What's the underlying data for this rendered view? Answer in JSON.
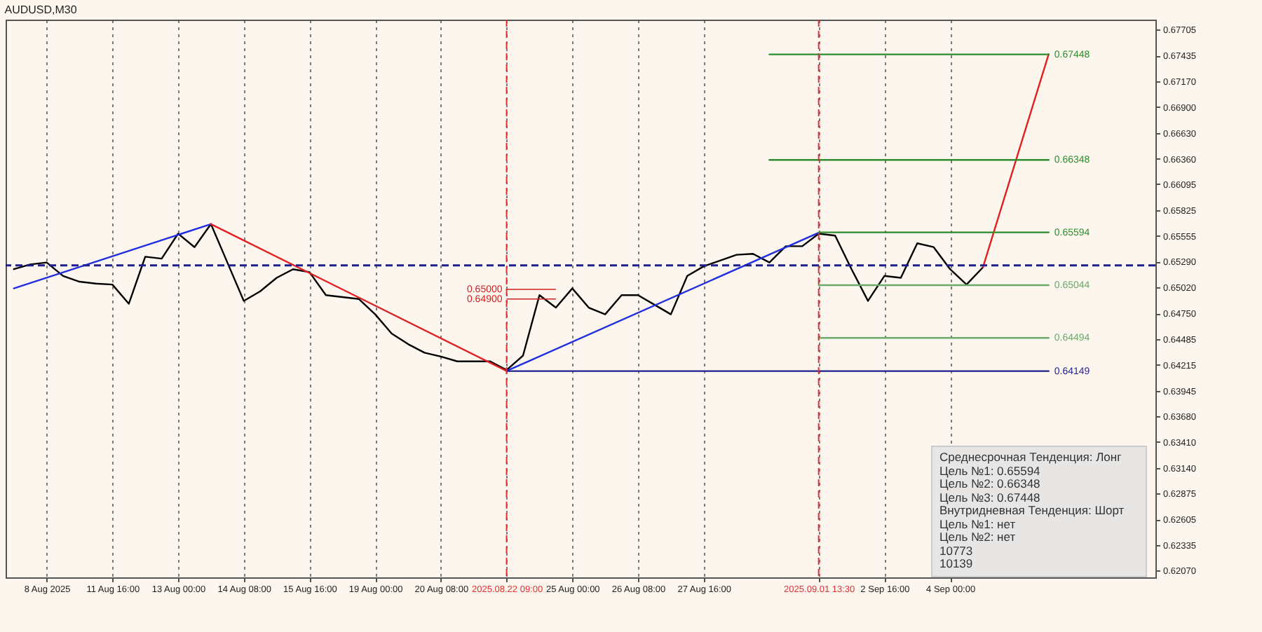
{
  "chart_data": {
    "type": "line",
    "title": "AUDUSD,M30",
    "categories": [
      null,
      null,
      "8 Aug 2025",
      null,
      null,
      null,
      "11 Aug 16:00",
      null,
      null,
      null,
      "13 Aug 00:00",
      null,
      null,
      null,
      "14 Aug 08:00",
      null,
      null,
      null,
      "15 Aug 16:00",
      null,
      null,
      null,
      "19 Aug 00:00",
      null,
      null,
      null,
      "20 Aug 08:00",
      null,
      null,
      null,
      "2025.08.22 09:00",
      null,
      null,
      null,
      "25 Aug 00:00",
      null,
      null,
      null,
      "26 Aug 08:00",
      null,
      null,
      null,
      "27 Aug 16:00",
      null,
      null,
      null,
      null,
      null,
      null,
      "2025.09.01 13:30",
      null,
      null,
      null,
      "2 Sep 16:00",
      null,
      null,
      null,
      "4 Sep 00:00",
      null,
      null,
      null,
      null,
      null,
      null,
      null,
      null,
      null,
      null,
      null,
      null
    ],
    "series": [
      {
        "color": "#000000",
        "values": [
          0.6521,
          0.6526,
          0.6528,
          0.6514,
          0.6508,
          0.6506,
          0.6505,
          0.6485,
          0.6534,
          0.6532,
          0.6558,
          0.6544,
          0.6568,
          0.6528,
          0.6488,
          0.6498,
          0.6512,
          0.6521,
          0.6518,
          0.6494,
          0.6492,
          0.649,
          0.6474,
          0.6454,
          0.6443,
          0.6434,
          0.643,
          0.6425,
          0.6425,
          0.6425,
          0.6416,
          0.6431,
          0.6494,
          0.6481,
          0.6501,
          0.6481,
          0.6474,
          0.6494,
          0.6494,
          0.6484,
          0.6474,
          0.6514,
          0.6524,
          0.653,
          0.6536,
          0.6537,
          0.6528,
          0.6545,
          0.6545,
          0.6558,
          0.6556,
          0.6521,
          0.6488,
          0.6514,
          0.6512,
          0.6548,
          0.6544,
          0.6521,
          0.6505,
          0.6523,
          null,
          null,
          null,
          null,
          null,
          null,
          null,
          null,
          null,
          null
        ]
      },
      {
        "color": "#1f2fe0",
        "values": [
          0.6501,
          null,
          null,
          null,
          null,
          null,
          null,
          null,
          null,
          null,
          null,
          null,
          0.6568,
          null,
          null,
          null,
          null,
          null,
          null,
          null,
          null,
          null,
          null,
          null,
          null,
          null,
          null,
          null,
          null,
          null,
          null,
          null,
          null,
          null,
          null,
          null,
          null,
          null,
          null,
          null,
          null,
          null,
          null,
          null,
          null,
          null,
          null,
          null,
          null,
          null,
          null,
          null,
          null,
          null,
          null,
          null,
          null,
          null,
          null,
          null,
          null,
          null,
          null,
          null,
          null,
          null,
          null,
          null,
          null,
          null
        ]
      },
      {
        "color": "#e02020",
        "values": [
          null,
          null,
          null,
          null,
          null,
          null,
          null,
          null,
          null,
          null,
          null,
          null,
          0.6568,
          null,
          null,
          null,
          null,
          null,
          null,
          null,
          null,
          null,
          null,
          null,
          null,
          null,
          null,
          null,
          null,
          null,
          0.6415,
          null,
          null,
          null,
          null,
          null,
          null,
          null,
          null,
          null,
          null,
          null,
          null,
          null,
          null,
          null,
          null,
          null,
          null,
          null,
          null,
          null,
          null,
          null,
          null,
          null,
          null,
          null,
          null,
          null,
          null,
          null,
          null,
          null,
          null,
          null,
          null,
          null,
          null,
          null
        ]
      },
      {
        "color": "#1f2fe0",
        "values": [
          null,
          null,
          null,
          null,
          null,
          null,
          null,
          null,
          null,
          null,
          null,
          null,
          null,
          null,
          null,
          null,
          null,
          null,
          null,
          null,
          null,
          null,
          null,
          null,
          null,
          null,
          null,
          null,
          null,
          null,
          0.6415,
          null,
          null,
          null,
          null,
          null,
          null,
          null,
          null,
          null,
          null,
          null,
          null,
          null,
          null,
          null,
          null,
          null,
          null,
          0.6559,
          null,
          null,
          null,
          null,
          null,
          null,
          null,
          null,
          null,
          null,
          null,
          null,
          null,
          null,
          null,
          null,
          null,
          null,
          null,
          null
        ]
      },
      {
        "color": "#e02020",
        "values": [
          null,
          null,
          null,
          null,
          null,
          null,
          null,
          null,
          null,
          null,
          null,
          null,
          null,
          null,
          null,
          null,
          null,
          null,
          null,
          null,
          null,
          null,
          null,
          null,
          null,
          null,
          null,
          null,
          null,
          null,
          null,
          null,
          null,
          null,
          null,
          null,
          null,
          null,
          null,
          null,
          null,
          null,
          null,
          null,
          null,
          null,
          null,
          null,
          null,
          null,
          null,
          null,
          null,
          null,
          null,
          null,
          null,
          null,
          null,
          0.6523,
          null,
          null,
          null,
          0.6745,
          null,
          null,
          null,
          null,
          null,
          null
        ]
      },
      {
        "name": "0.67448",
        "color": "#2e8b2e",
        "values": [
          null,
          null,
          null,
          null,
          null,
          null,
          null,
          null,
          null,
          null,
          null,
          null,
          null,
          null,
          null,
          null,
          null,
          null,
          null,
          null,
          null,
          null,
          null,
          null,
          null,
          null,
          null,
          null,
          null,
          null,
          null,
          null,
          null,
          null,
          null,
          null,
          null,
          null,
          null,
          null,
          null,
          null,
          null,
          null,
          null,
          null,
          0.67448,
          null,
          null,
          null,
          null,
          null,
          null,
          null,
          null,
          null,
          null,
          null,
          null,
          null,
          null,
          null,
          null,
          0.67448,
          null,
          null,
          null,
          null,
          null,
          null
        ]
      },
      {
        "name": "0.66348",
        "color": "#2e8b2e",
        "values": [
          null,
          null,
          null,
          null,
          null,
          null,
          null,
          null,
          null,
          null,
          null,
          null,
          null,
          null,
          null,
          null,
          null,
          null,
          null,
          null,
          null,
          null,
          null,
          null,
          null,
          null,
          null,
          null,
          null,
          null,
          null,
          null,
          null,
          null,
          null,
          null,
          null,
          null,
          null,
          null,
          null,
          null,
          null,
          null,
          null,
          null,
          0.66348,
          null,
          null,
          null,
          null,
          null,
          null,
          null,
          null,
          null,
          null,
          null,
          null,
          null,
          null,
          null,
          null,
          0.66348,
          null,
          null,
          null,
          null,
          null,
          null
        ]
      },
      {
        "name": "0.65594",
        "color": "#2e8b2e",
        "values": [
          null,
          null,
          null,
          null,
          null,
          null,
          null,
          null,
          null,
          null,
          null,
          null,
          null,
          null,
          null,
          null,
          null,
          null,
          null,
          null,
          null,
          null,
          null,
          null,
          null,
          null,
          null,
          null,
          null,
          null,
          null,
          null,
          null,
          null,
          null,
          null,
          null,
          null,
          null,
          null,
          null,
          null,
          null,
          null,
          null,
          null,
          null,
          null,
          null,
          0.65594,
          null,
          null,
          null,
          null,
          null,
          null,
          null,
          null,
          null,
          null,
          null,
          null,
          null,
          0.65594,
          null,
          null,
          null,
          null,
          null,
          null
        ]
      },
      {
        "name": "0.65044",
        "color": "#6aaa6a",
        "values": [
          null,
          null,
          null,
          null,
          null,
          null,
          null,
          null,
          null,
          null,
          null,
          null,
          null,
          null,
          null,
          null,
          null,
          null,
          null,
          null,
          null,
          null,
          null,
          null,
          null,
          null,
          null,
          null,
          null,
          null,
          null,
          null,
          null,
          null,
          null,
          null,
          null,
          null,
          null,
          null,
          null,
          null,
          null,
          null,
          null,
          null,
          null,
          null,
          null,
          0.65044,
          null,
          null,
          null,
          null,
          null,
          null,
          null,
          null,
          null,
          null,
          null,
          null,
          null,
          0.65044,
          null,
          null,
          null,
          null,
          null,
          null
        ]
      },
      {
        "name": "0.64494",
        "color": "#6aaa6a",
        "values": [
          null,
          null,
          null,
          null,
          null,
          null,
          null,
          null,
          null,
          null,
          null,
          null,
          null,
          null,
          null,
          null,
          null,
          null,
          null,
          null,
          null,
          null,
          null,
          null,
          null,
          null,
          null,
          null,
          null,
          null,
          null,
          null,
          null,
          null,
          null,
          null,
          null,
          null,
          null,
          null,
          null,
          null,
          null,
          null,
          null,
          null,
          null,
          null,
          null,
          0.64494,
          null,
          null,
          null,
          null,
          null,
          null,
          null,
          null,
          null,
          null,
          null,
          null,
          null,
          0.64494,
          null,
          null,
          null,
          null,
          null,
          null
        ]
      },
      {
        "name": "0.64149",
        "color": "#1e1e8c",
        "values": [
          null,
          null,
          null,
          null,
          null,
          null,
          null,
          null,
          null,
          null,
          null,
          null,
          null,
          null,
          null,
          null,
          null,
          null,
          null,
          null,
          null,
          null,
          null,
          null,
          null,
          null,
          null,
          null,
          null,
          null,
          0.64149,
          null,
          null,
          null,
          null,
          null,
          null,
          null,
          null,
          null,
          null,
          null,
          null,
          null,
          null,
          null,
          null,
          null,
          null,
          null,
          null,
          null,
          null,
          null,
          null,
          null,
          null,
          null,
          null,
          null,
          null,
          null,
          null,
          0.64149,
          null,
          null,
          null,
          null,
          null,
          null
        ]
      }
    ],
    "ylim": [
      0.62,
      0.6781
    ],
    "yticks": [
      {
        "value": 0.6207,
        "label": "0.62070"
      },
      0.62335,
      0.62605,
      0.62875,
      {
        "value": 0.6314,
        "label": "0.63140"
      },
      {
        "value": 0.6341,
        "label": "0.63410"
      },
      {
        "value": 0.6368,
        "label": "0.63680"
      },
      0.63945,
      0.64215,
      0.64485,
      {
        "value": 0.6475,
        "label": "0.64750"
      },
      {
        "value": 0.6502,
        "label": "0.65020"
      },
      {
        "value": 0.6529,
        "label": "0.65290"
      },
      0.65555,
      0.65825,
      0.66095,
      {
        "value": 0.6636,
        "label": "0.66360"
      },
      {
        "value": 0.6663,
        "label": "0.66630"
      },
      {
        "value": 0.669,
        "label": "0.66900"
      },
      {
        "value": 0.6717,
        "label": "0.67170"
      },
      0.67435,
      0.67705
    ],
    "grid": "x",
    "ref_lines": [
      {
        "axis": "x",
        "value": "2025.08.22 09:00",
        "color": "#e03030",
        "line_style": "dashed"
      },
      {
        "axis": "x",
        "value": "2025.09.01 13:30",
        "color": "#e03030",
        "line_style": "dashed"
      },
      {
        "axis": "y",
        "value": 0.6525,
        "color": "#1e1e8c",
        "line_style": "dashed"
      },
      {
        "axis": "y",
        "value": 0.65,
        "label": "0.65000",
        "color": "#d02020"
      },
      {
        "axis": "y",
        "value": 0.649,
        "label": "0.64900",
        "color": "#d02020"
      }
    ],
    "annotations": [
      "Среднесрочная Тенденция: Лонг",
      "Цель №1: 0.65594",
      "Цель №2: 0.66348",
      "Цель №3: 0.67448",
      "Внутридневная Тенденция: Шорт",
      "Цель №1: нет",
      "Цель №2: нет",
      "10773",
      "10139"
    ]
  }
}
